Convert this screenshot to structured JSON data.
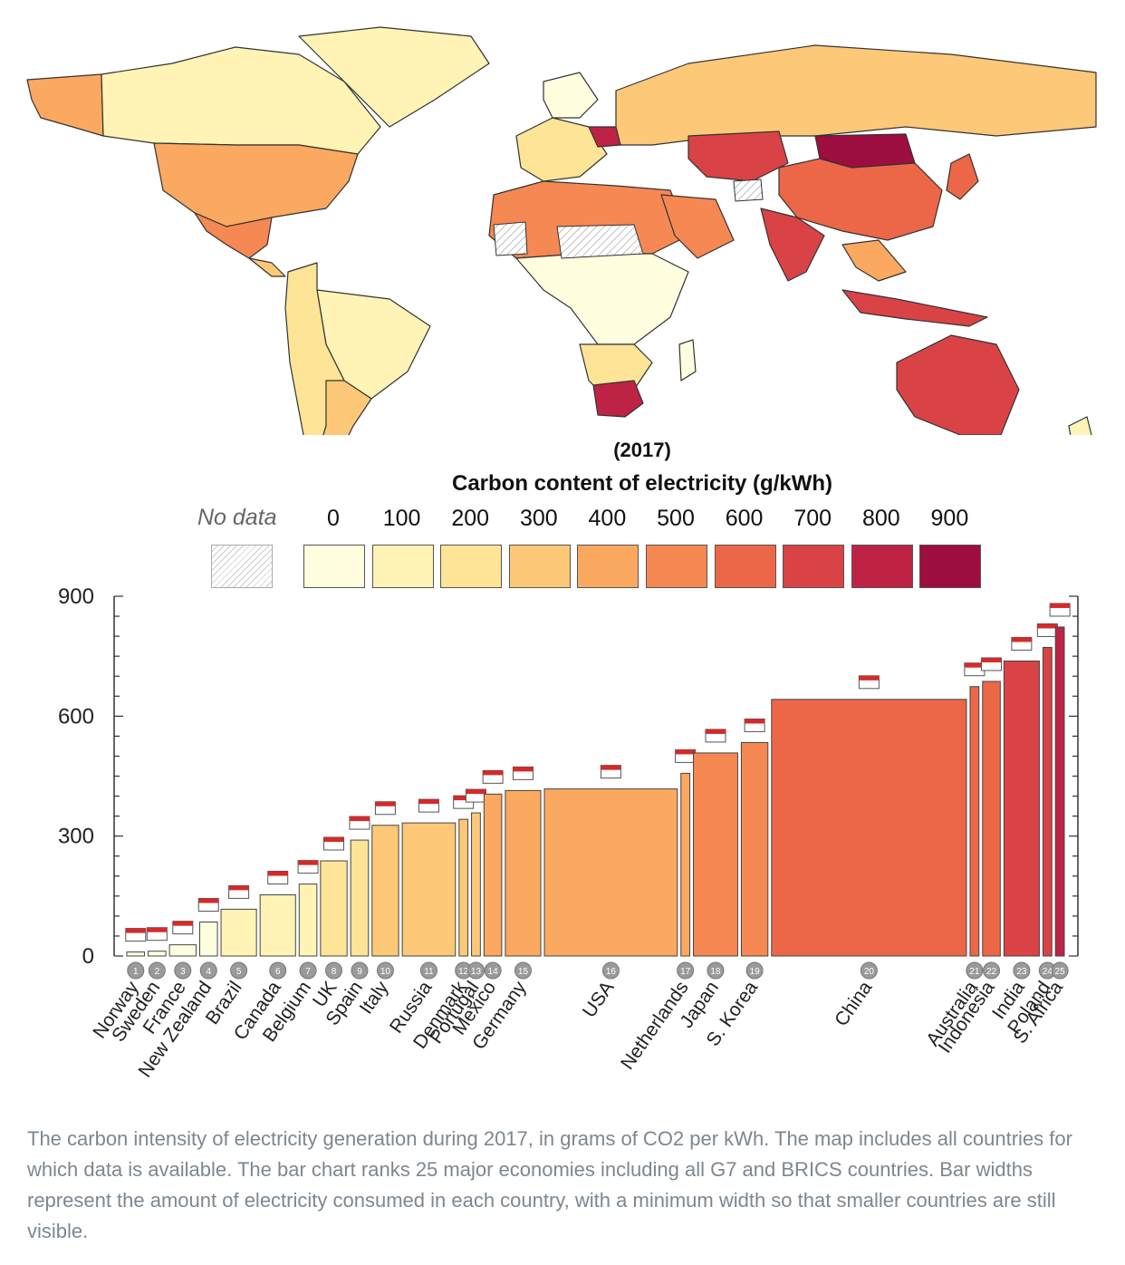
{
  "legend": {
    "year": "(2017)",
    "title": "Carbon content of electricity (g/kWh)",
    "no_data_label": "No data",
    "ticks": [
      "0",
      "100",
      "200",
      "300",
      "400",
      "500",
      "600",
      "700",
      "800",
      "900"
    ],
    "colors": [
      "#ffffe0",
      "#fff3b5",
      "#fee496",
      "#fdc877",
      "#fba861",
      "#f68853",
      "#ec6748",
      "#d94346",
      "#be2346",
      "#9d0d40"
    ]
  },
  "caption": "The carbon intensity of electricity generation during 2017, in grams of CO2 per kWh. The map includes all countries for which data is available. The bar chart ranks 25 major economies including all G7 and BRICS countries. Bar widths represent the amount of electricity consumed in each country, with a minimum width so that smaller countries are still visible.",
  "chart_data": {
    "type": "bar",
    "title": "",
    "xlabel": "",
    "ylabel": "",
    "ylim": [
      0,
      900
    ],
    "yticks": [
      0,
      300,
      600,
      900
    ],
    "grid": false,
    "bar_widths_encode": "electricity consumed",
    "categories": [
      "Norway",
      "Sweden",
      "France",
      "New Zealand",
      "Brazil",
      "Canada",
      "Belgium",
      "UK",
      "Spain",
      "Italy",
      "Russia",
      "Denmark",
      "Portugal",
      "Mexico",
      "Germany",
      "USA",
      "Netherlands",
      "Japan",
      "S. Korea",
      "China",
      "Australia",
      "Indonesia",
      "India",
      "Poland",
      "S. Africa"
    ],
    "ranks": [
      "1",
      "2",
      "3",
      "4",
      "5",
      "6",
      "7",
      "8",
      "9",
      "10",
      "11",
      "12",
      "13",
      "14",
      "15",
      "16",
      "17",
      "18",
      "19",
      "20",
      "21",
      "22",
      "23",
      "24",
      "25"
    ],
    "values": [
      10,
      12,
      28,
      85,
      117,
      153,
      180,
      238,
      290,
      327,
      333,
      342,
      358,
      405,
      414,
      418,
      457,
      508,
      534,
      642,
      674,
      687,
      738,
      772,
      823
    ],
    "relative_consumption": [
      2,
      2,
      3,
      2,
      4,
      4,
      2,
      3,
      2,
      3,
      6,
      1,
      1,
      2,
      4,
      15,
      1,
      5,
      3,
      22,
      1,
      2,
      4,
      1,
      1
    ]
  }
}
